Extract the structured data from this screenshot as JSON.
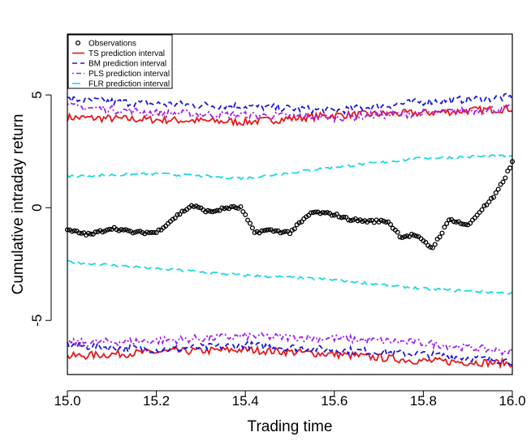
{
  "chart_data": {
    "type": "line",
    "title": "",
    "xlabel": "Trading time",
    "ylabel": "Cumulative intraday return",
    "xlim": [
      15.0,
      16.0
    ],
    "ylim": [
      -7.4,
      7.7
    ],
    "x_ticks": [
      15.0,
      15.2,
      15.4,
      15.6,
      15.8,
      16.0
    ],
    "x_tick_labels": [
      "15.0",
      "15.2",
      "15.4",
      "15.6",
      "15.8",
      "16.0"
    ],
    "y_ticks": [
      -5,
      0,
      5
    ],
    "y_tick_labels": [
      "-5",
      "0",
      "5"
    ],
    "grid": false,
    "legend_position": "top-left",
    "series": [
      {
        "name": "Observations",
        "kind": "points",
        "color": "#000000",
        "x": [
          15.0,
          15.05,
          15.1,
          15.15,
          15.2,
          15.25,
          15.28,
          15.32,
          15.36,
          15.39,
          15.42,
          15.45,
          15.5,
          15.55,
          15.6,
          15.63,
          15.67,
          15.72,
          15.75,
          15.78,
          15.82,
          15.86,
          15.9,
          15.93,
          15.96,
          15.98,
          16.0
        ],
        "y": [
          -1.0,
          -1.2,
          -0.9,
          -1.1,
          -1.1,
          -0.3,
          0.1,
          -0.2,
          0.0,
          0.0,
          -1.1,
          -1.0,
          -1.1,
          -0.2,
          -0.3,
          -0.5,
          -0.6,
          -0.6,
          -1.3,
          -1.2,
          -1.8,
          -0.5,
          -0.8,
          -0.1,
          0.5,
          1.2,
          2.0
        ]
      },
      {
        "name": "TS prediction interval",
        "kind": "band",
        "color": "#e41a1c",
        "x": [
          15.0,
          15.2,
          15.4,
          15.6,
          15.8,
          16.0
        ],
        "upper": [
          4.0,
          3.9,
          3.8,
          4.1,
          4.2,
          4.4
        ],
        "lower": [
          -6.6,
          -6.4,
          -6.3,
          -6.5,
          -6.8,
          -6.9
        ]
      },
      {
        "name": "BM prediction interval",
        "kind": "band",
        "color": "#1a1ad6",
        "x": [
          15.0,
          15.2,
          15.4,
          15.6,
          15.8,
          16.0
        ],
        "upper": [
          4.8,
          4.6,
          4.5,
          4.3,
          4.7,
          4.9
        ],
        "lower": [
          -6.1,
          -6.3,
          -6.1,
          -6.3,
          -6.5,
          -6.8
        ]
      },
      {
        "name": "PLS prediction interval",
        "kind": "band",
        "color": "#a020f0",
        "x": [
          15.0,
          15.2,
          15.4,
          15.6,
          15.8,
          16.0
        ],
        "upper": [
          4.5,
          4.2,
          4.1,
          4.0,
          4.2,
          4.4
        ],
        "lower": [
          -6.0,
          -5.9,
          -5.7,
          -5.8,
          -6.0,
          -6.4
        ]
      },
      {
        "name": "FLR prediction interval",
        "kind": "band",
        "color": "#1ed8e0",
        "x": [
          15.0,
          15.2,
          15.4,
          15.6,
          15.8,
          16.0
        ],
        "upper": [
          1.4,
          1.5,
          1.3,
          1.8,
          2.2,
          2.3
        ],
        "lower": [
          -2.4,
          -2.7,
          -3.0,
          -3.2,
          -3.6,
          -3.8
        ]
      }
    ]
  }
}
